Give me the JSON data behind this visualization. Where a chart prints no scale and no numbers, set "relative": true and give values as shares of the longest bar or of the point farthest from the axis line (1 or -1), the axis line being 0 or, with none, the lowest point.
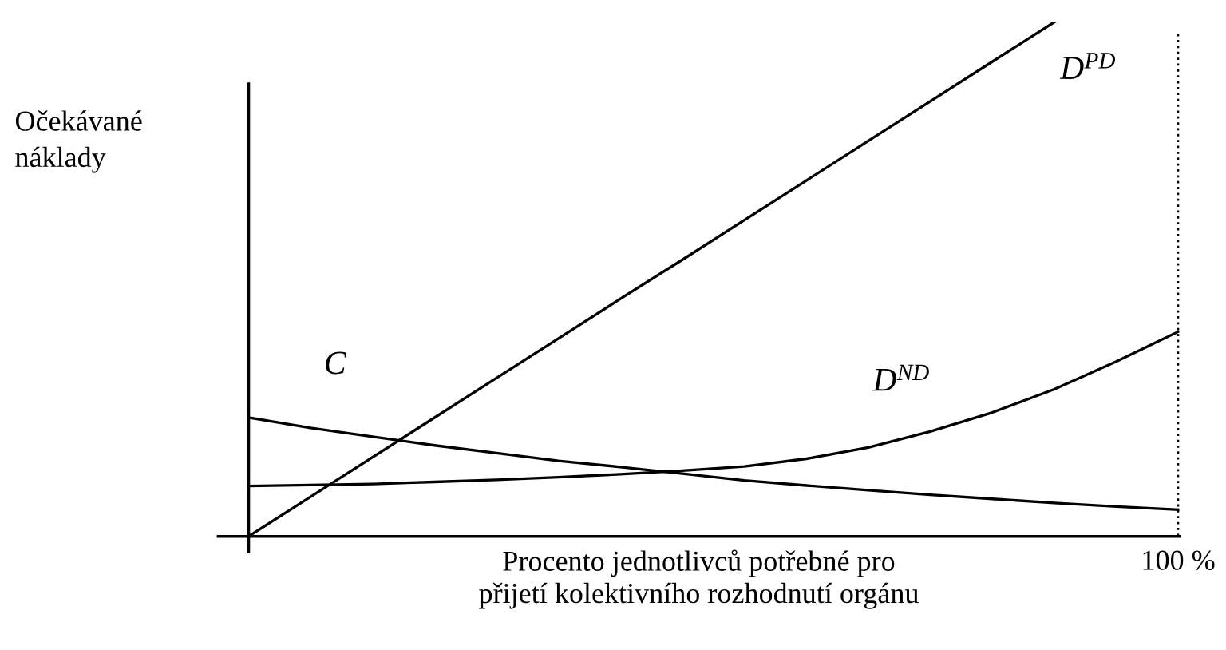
{
  "chart_data": {
    "type": "line",
    "relative": true,
    "ylabel": "Očekávané\nnáklady",
    "xlabel": "Procento jednotlivců potřebné pro\npřijetí kolektivního rozhodnutí orgánu",
    "categories": [
      null,
      null,
      null,
      null,
      null,
      null,
      null,
      null,
      null,
      null,
      null,
      null,
      null,
      null,
      null,
      null
    ],
    "series": [
      {
        "name": "C",
        "color": "#000000",
        "values": [
          0.231,
          0.211,
          0.194,
          0.177,
          0.162,
          0.147,
          0.135,
          0.122,
          0.109,
          0.099,
          0.09,
          0.081,
          0.073,
          0.065,
          0.058,
          0.052
        ]
      },
      {
        "name": "D$^{ND}$",
        "color": "#000000",
        "values": [
          0.098,
          0.1,
          0.102,
          0.106,
          0.11,
          0.115,
          0.121,
          0.128,
          0.136,
          0.151,
          0.173,
          0.204,
          0.241,
          0.286,
          0.34,
          0.398
        ]
      },
      {
        "name": "D$^{PD}$",
        "color": "#000000",
        "values": [
          0,
          0.077,
          0.154,
          0.231,
          0.308,
          0.385,
          0.462,
          0.538,
          0.615,
          0.692,
          0.769,
          0.846,
          0.923,
          1,
          null,
          null
        ]
      }
    ],
    "ref_lines": [
      {
        "axis": "x",
        "label": "100 %",
        "line_style": "dotted",
        "color": "#000000"
      }
    ],
    "grid": false,
    "legend": false,
    "marker": "none",
    "line_style": "solid"
  }
}
